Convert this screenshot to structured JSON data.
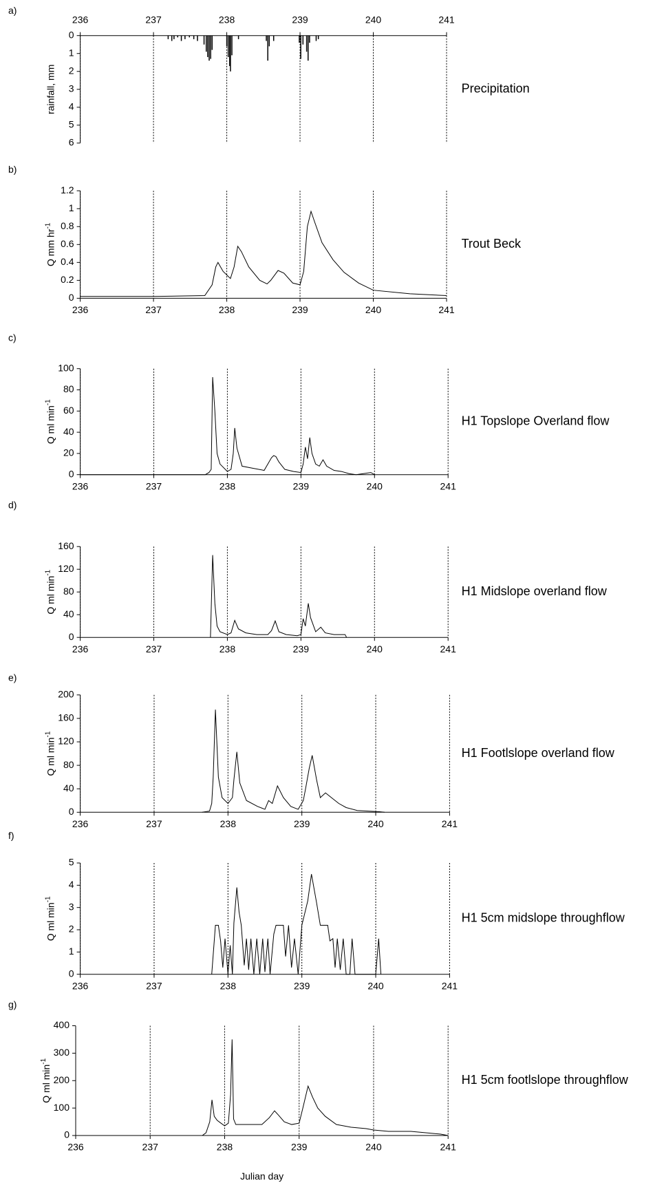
{
  "chart_data": [
    {
      "type": "bar",
      "panel_label": "a)",
      "title": "Precipitation",
      "ylabel": "rainfall, mm",
      "y_inverted": true,
      "x_axis_position": "top",
      "xlim": [
        236,
        241
      ],
      "xticks": [
        236,
        237,
        238,
        239,
        240,
        241
      ],
      "ylim": [
        0,
        6
      ],
      "yticks": [
        0,
        1,
        2,
        3,
        4,
        5,
        6
      ],
      "grid": true,
      "color": "#000000",
      "x": [
        237.2,
        237.25,
        237.28,
        237.33,
        237.38,
        237.43,
        237.49,
        237.55,
        237.6,
        237.69,
        237.72,
        237.74,
        237.76,
        237.78,
        237.8,
        238.0,
        238.02,
        238.04,
        238.05,
        238.07,
        238.16,
        238.54,
        238.56,
        238.58,
        238.64,
        238.99,
        239.01,
        239.04,
        239.09,
        239.11,
        239.13,
        239.22,
        239.25
      ],
      "values": [
        0.2,
        0.3,
        0.2,
        0.1,
        0.3,
        0.2,
        0.1,
        0.2,
        0.3,
        0.5,
        0.9,
        1.2,
        1.4,
        1.3,
        0.8,
        0.6,
        1.2,
        1.7,
        2.0,
        1.1,
        0.2,
        0.3,
        1.4,
        0.6,
        0.3,
        0.4,
        1.3,
        0.5,
        0.9,
        1.4,
        0.4,
        0.3,
        0.2
      ]
    },
    {
      "type": "line",
      "panel_label": "b)",
      "title": "Trout Beck",
      "ylabel": "Q mm hr",
      "ylabel_superscript": "-1",
      "xlim": [
        236,
        241
      ],
      "xticks": [
        236,
        237,
        238,
        239,
        240,
        241
      ],
      "ylim": [
        0,
        1.2
      ],
      "yticks": [
        0,
        0.2,
        0.4,
        0.6,
        0.8,
        1,
        1.2
      ],
      "grid": true,
      "color": "#000000",
      "x": [
        236,
        237,
        237.7,
        237.8,
        237.85,
        237.88,
        237.95,
        238.05,
        238.1,
        238.15,
        238.2,
        238.3,
        238.45,
        238.55,
        238.6,
        238.7,
        238.78,
        238.9,
        239.0,
        239.05,
        239.1,
        239.15,
        239.2,
        239.3,
        239.45,
        239.6,
        239.8,
        240.0,
        240.5,
        241
      ],
      "values": [
        0.02,
        0.02,
        0.03,
        0.15,
        0.35,
        0.4,
        0.3,
        0.22,
        0.35,
        0.58,
        0.52,
        0.35,
        0.2,
        0.16,
        0.2,
        0.31,
        0.28,
        0.17,
        0.15,
        0.3,
        0.8,
        0.97,
        0.85,
        0.62,
        0.43,
        0.29,
        0.17,
        0.09,
        0.05,
        0.03
      ]
    },
    {
      "type": "line",
      "panel_label": "c)",
      "title": "H1 Topslope Overland flow",
      "ylabel": "Q ml min",
      "ylabel_superscript": "-1",
      "xlim": [
        236,
        241
      ],
      "xticks": [
        236,
        237,
        238,
        239,
        240,
        241
      ],
      "ylim": [
        0,
        100
      ],
      "yticks": [
        0,
        20,
        40,
        60,
        80,
        100
      ],
      "grid": true,
      "color": "#000000",
      "x": [
        236,
        237.7,
        237.75,
        237.78,
        237.8,
        237.83,
        237.86,
        237.9,
        238.0,
        238.05,
        238.08,
        238.1,
        238.13,
        238.2,
        238.35,
        238.5,
        238.6,
        238.63,
        238.66,
        238.7,
        238.78,
        238.9,
        239.0,
        239.03,
        239.06,
        239.09,
        239.12,
        239.15,
        239.2,
        239.25,
        239.3,
        239.35,
        239.45,
        239.55,
        239.65,
        239.75,
        239.95,
        240.0
      ],
      "values": [
        0,
        0,
        2,
        5,
        92,
        60,
        20,
        10,
        3,
        5,
        20,
        44,
        25,
        8,
        6,
        4,
        16,
        18,
        17,
        12,
        5,
        3,
        2,
        10,
        26,
        15,
        35,
        20,
        10,
        8,
        14,
        8,
        4,
        3,
        1,
        0,
        2,
        0
      ]
    },
    {
      "type": "line",
      "panel_label": "d)",
      "title": "H1 Midslope overland flow",
      "ylabel": "Q ml min",
      "ylabel_superscript": "-1",
      "xlim": [
        236,
        241
      ],
      "xticks": [
        236,
        237,
        238,
        239,
        240,
        241
      ],
      "ylim": [
        0,
        160
      ],
      "yticks": [
        0,
        40,
        80,
        120,
        160
      ],
      "grid": true,
      "color": "#000000",
      "x": [
        237.77,
        237.8,
        237.83,
        237.86,
        237.9,
        238.0,
        238.05,
        238.1,
        238.15,
        238.25,
        238.4,
        238.55,
        238.6,
        238.65,
        238.7,
        238.8,
        238.95,
        239.0,
        239.03,
        239.06,
        239.1,
        239.13,
        239.2,
        239.27,
        239.33,
        239.45,
        239.6,
        239.62
      ],
      "values": [
        0,
        145,
        60,
        20,
        10,
        5,
        8,
        30,
        15,
        8,
        5,
        5,
        12,
        29,
        10,
        5,
        3,
        5,
        33,
        20,
        60,
        35,
        10,
        18,
        8,
        5,
        5,
        0
      ]
    },
    {
      "type": "line",
      "panel_label": "e)",
      "title": "H1 Footlslope overland flow",
      "ylabel": "Q ml min",
      "ylabel_superscript": "-1",
      "xlim": [
        236,
        241
      ],
      "xticks": [
        236,
        237,
        238,
        239,
        240,
        241
      ],
      "ylim": [
        0,
        200
      ],
      "yticks": [
        0,
        40,
        80,
        120,
        160,
        200
      ],
      "grid": true,
      "color": "#000000",
      "x": [
        237.65,
        237.75,
        237.78,
        237.8,
        237.83,
        237.87,
        237.92,
        238.0,
        238.06,
        238.08,
        238.12,
        238.16,
        238.25,
        238.4,
        238.5,
        238.55,
        238.6,
        238.67,
        238.75,
        238.85,
        238.95,
        239.02,
        239.05,
        239.1,
        239.14,
        239.2,
        239.25,
        239.32,
        239.4,
        239.5,
        239.6,
        239.75,
        239.9,
        240.05,
        240.12
      ],
      "values": [
        0,
        2,
        15,
        60,
        175,
        60,
        25,
        15,
        25,
        55,
        103,
        50,
        20,
        10,
        5,
        20,
        15,
        45,
        25,
        10,
        5,
        20,
        40,
        75,
        97,
        55,
        25,
        33,
        25,
        15,
        8,
        3,
        2,
        1,
        0
      ]
    },
    {
      "type": "line",
      "panel_label": "f)",
      "title": "H1 5cm midslope throughflow",
      "ylabel": "Q ml min",
      "ylabel_superscript": "-1",
      "xlim": [
        236,
        241
      ],
      "xticks": [
        236,
        237,
        238,
        239,
        240,
        241
      ],
      "ylim": [
        0,
        5
      ],
      "yticks": [
        0,
        1,
        2,
        3,
        4,
        5
      ],
      "grid": true,
      "color": "#000000",
      "x": [
        237.78,
        237.83,
        237.87,
        237.9,
        237.93,
        237.96,
        238.0,
        238.03,
        238.06,
        238.08,
        238.12,
        238.15,
        238.18,
        238.22,
        238.25,
        238.28,
        238.31,
        238.35,
        238.39,
        238.43,
        238.47,
        238.5,
        238.54,
        238.57,
        238.62,
        238.65,
        238.75,
        238.78,
        238.82,
        238.86,
        238.9,
        238.95,
        239.0,
        239.08,
        239.13,
        239.2,
        239.25,
        239.35,
        239.38,
        239.42,
        239.45,
        239.48,
        239.52,
        239.56,
        239.6,
        239.65,
        239.68,
        239.72,
        240.0,
        240.04,
        240.07
      ],
      "values": [
        0,
        2.2,
        2.2,
        1.5,
        0.3,
        1.6,
        0,
        1.3,
        0,
        2.3,
        3.9,
        2.8,
        2.2,
        0.4,
        1.6,
        0.2,
        1.6,
        0,
        1.6,
        0,
        1.6,
        0.1,
        1.6,
        0,
        1.8,
        2.2,
        2.2,
        0.8,
        2.2,
        0.3,
        1.6,
        0,
        2.2,
        3.3,
        4.5,
        3.2,
        2.2,
        2.2,
        1.5,
        1.6,
        0.3,
        1.6,
        0.2,
        1.6,
        0,
        0,
        1.6,
        0,
        0,
        1.6,
        0
      ]
    },
    {
      "type": "line",
      "panel_label": "g)",
      "title": "H1 5cm footlslope throughflow",
      "ylabel": "Q ml min",
      "ylabel_superscript": "-1",
      "xlabel": "Julian day",
      "xlim": [
        236,
        241
      ],
      "xticks": [
        236,
        237,
        238,
        239,
        240,
        241
      ],
      "ylim": [
        0,
        400
      ],
      "yticks": [
        0,
        100,
        200,
        300,
        400
      ],
      "grid": true,
      "color": "#000000",
      "x": [
        237.7,
        237.75,
        237.8,
        237.83,
        237.86,
        237.9,
        237.95,
        238.0,
        238.05,
        238.08,
        238.1,
        238.12,
        238.15,
        238.25,
        238.4,
        238.5,
        238.6,
        238.67,
        238.72,
        238.8,
        238.9,
        239.0,
        239.05,
        239.12,
        239.18,
        239.25,
        239.35,
        239.5,
        239.7,
        239.9,
        240.0,
        240.2,
        240.5,
        240.7,
        240.9,
        241
      ],
      "values": [
        0,
        10,
        50,
        130,
        70,
        55,
        45,
        35,
        45,
        150,
        350,
        60,
        40,
        40,
        40,
        40,
        65,
        90,
        75,
        50,
        40,
        45,
        100,
        180,
        140,
        100,
        70,
        40,
        30,
        25,
        20,
        15,
        15,
        10,
        5,
        0
      ]
    }
  ]
}
